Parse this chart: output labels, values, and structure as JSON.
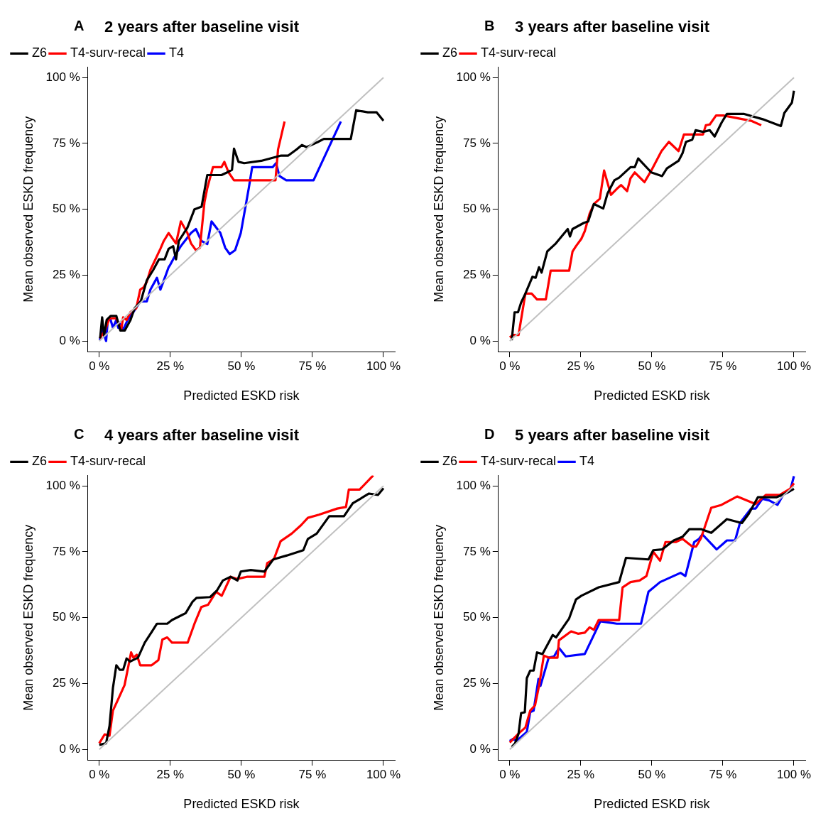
{
  "chart_data": [
    {
      "type": "line",
      "title": "2 years after baseline visit",
      "annotations": [
        "A"
      ],
      "xlabel": "Predicted ESKD risk",
      "ylabel": "Mean observed ESKD frequency",
      "xlim": [
        -4,
        104
      ],
      "ylim": [
        -4,
        104
      ],
      "xticks": [
        {
          "value": 0,
          "label": "0 %"
        },
        {
          "value": 25,
          "label": "25 %"
        },
        {
          "value": 50,
          "label": "50 %"
        },
        {
          "value": 75,
          "label": "75 %"
        },
        {
          "value": 100,
          "label": "100 %"
        }
      ],
      "yticks": [
        {
          "value": 0,
          "label": "0 %"
        },
        {
          "value": 25,
          "label": "25 %"
        },
        {
          "value": 50,
          "label": "50 %"
        },
        {
          "value": 75,
          "label": "75 %"
        },
        {
          "value": 100,
          "label": "100 %"
        }
      ],
      "grid": false,
      "legend": "top left",
      "marker": "none",
      "line_style": "solid",
      "series": [
        {
          "color": "#c0c0c0",
          "x": [
            0,
            100
          ],
          "values": [
            0,
            100
          ]
        },
        {
          "name": "Z6",
          "color": "#000000",
          "x": [
            0.3,
            1,
            1.7,
            2.6,
            4,
            6,
            7.4,
            9,
            11,
            12.4,
            14.6,
            16.7,
            19,
            21,
            23,
            24.4,
            26,
            27,
            28,
            31,
            33.5,
            36,
            38,
            43,
            45,
            46.7,
            47.4,
            49,
            51,
            57,
            64,
            66.5,
            69.4,
            71.3,
            73,
            77,
            79,
            81.3,
            88.5,
            90.4,
            94.5,
            97.6,
            100
          ],
          "values": [
            1,
            9,
            2,
            8,
            9.5,
            9.5,
            4,
            4,
            8,
            12.4,
            15,
            23,
            27,
            31,
            31,
            35,
            36,
            31,
            38,
            43,
            50,
            51,
            63,
            63,
            64,
            65,
            73,
            68,
            67.5,
            68.4,
            70.4,
            70.4,
            72.7,
            74.4,
            73.6,
            75.6,
            76.7,
            76.7,
            76.7,
            87.6,
            86.8,
            86.8,
            83.6
          ]
        },
        {
          "name": "T4-surv-recal",
          "color": "#ff0000",
          "x": [
            0.2,
            2,
            3.6,
            6,
            7.7,
            8.4,
            9.6,
            11,
            13,
            14.4,
            15.6,
            16.7,
            18,
            21.5,
            22.7,
            24.4,
            27,
            28.7,
            31,
            32.3,
            34,
            35.4,
            37,
            38,
            40,
            43,
            44,
            45.5,
            47.4,
            52.6,
            62,
            62.9,
            65.2
          ],
          "values": [
            1,
            4,
            8.6,
            8.6,
            4.3,
            9,
            8,
            11,
            12.4,
            19.5,
            20.4,
            22.4,
            27,
            35,
            38,
            41,
            37,
            45.4,
            41,
            37,
            34.5,
            35.4,
            52.6,
            58,
            66,
            66,
            68,
            64,
            61,
            61,
            61,
            72.7,
            83.3
          ]
        },
        {
          "name": "T4",
          "color": "#0000ff",
          "x": [
            0.2,
            1,
            1.7,
            2.4,
            3,
            4,
            4.8,
            6,
            6.7,
            7.2,
            8.4,
            10,
            12,
            14.4,
            16.7,
            18,
            20.3,
            21.5,
            23.4,
            24.4,
            25,
            27.5,
            28.7,
            32.3,
            34,
            35.9,
            38,
            39.5,
            42.6,
            44.3,
            45.9,
            47.8,
            49.8,
            52.6,
            53.8,
            61,
            62.2,
            63.4,
            65.8,
            75.4,
            85
          ],
          "values": [
            0.3,
            5,
            2.3,
            0,
            8,
            8,
            5,
            8,
            5,
            6.6,
            4.3,
            8,
            11,
            15,
            15,
            19.5,
            24,
            19.5,
            25,
            28,
            29,
            34,
            36,
            41,
            42.5,
            38,
            36.8,
            45.4,
            41,
            35.4,
            33,
            34.5,
            41,
            58,
            66,
            66,
            67.5,
            62.6,
            61,
            61,
            83.3
          ]
        }
      ]
    },
    {
      "type": "line",
      "title": "3 years after baseline visit",
      "annotations": [
        "B"
      ],
      "xlabel": "Predicted ESKD risk",
      "ylabel": "Mean observed ESKD frequency",
      "xlim": [
        -4,
        104
      ],
      "ylim": [
        -4,
        104
      ],
      "xticks": [
        {
          "value": 0,
          "label": "0 %"
        },
        {
          "value": 25,
          "label": "25 %"
        },
        {
          "value": 50,
          "label": "50 %"
        },
        {
          "value": 75,
          "label": "75 %"
        },
        {
          "value": 100,
          "label": "100 %"
        }
      ],
      "yticks": [
        {
          "value": 0,
          "label": "0 %"
        },
        {
          "value": 25,
          "label": "25 %"
        },
        {
          "value": 50,
          "label": "50 %"
        },
        {
          "value": 75,
          "label": "75 %"
        },
        {
          "value": 100,
          "label": "100 %"
        }
      ],
      "grid": false,
      "legend": "top left",
      "marker": "none",
      "line_style": "solid",
      "series": [
        {
          "color": "#c0c0c0",
          "x": [
            0,
            100
          ],
          "values": [
            0,
            100
          ]
        },
        {
          "name": "Z6",
          "color": "#000000",
          "x": [
            0.7,
            1.7,
            2.9,
            4,
            5.5,
            8,
            9.1,
            10.3,
            11.2,
            13.2,
            16,
            20.4,
            21.2,
            22.1,
            26,
            27.6,
            29.6,
            32.9,
            34.4,
            36.8,
            38.5,
            42.5,
            44,
            45.2,
            49.8,
            53.6,
            55.3,
            59.4,
            60.8,
            62,
            64.2,
            65.4,
            68,
            70.4,
            72.1,
            74.5,
            76.4,
            82.5,
            89,
            95.4,
            96.6,
            99.3,
            100
          ],
          "values": [
            0.3,
            10.9,
            10.9,
            14.6,
            18,
            24.4,
            24,
            28,
            26,
            34,
            36.8,
            42.5,
            39.7,
            42.5,
            44.8,
            45.4,
            52,
            50.3,
            56,
            61,
            62,
            66,
            66,
            69.3,
            64,
            62.6,
            65.5,
            68.4,
            71.3,
            75.6,
            76.4,
            80,
            79.4,
            80,
            77.6,
            82.8,
            86.2,
            86.2,
            84.2,
            81.6,
            86.5,
            90.5,
            95
          ]
        },
        {
          "name": "T4-surv-recal",
          "color": "#ff0000",
          "x": [
            0,
            1.2,
            3.1,
            5.5,
            7.7,
            9.6,
            12.7,
            14.4,
            20.9,
            22.1,
            23.3,
            25.2,
            26.4,
            28.1,
            29.6,
            31.7,
            33.2,
            35.6,
            37.7,
            39.2,
            41.3,
            42.5,
            44,
            47.4,
            49.8,
            53.4,
            56,
            59.4,
            61.3,
            68,
            69,
            70.4,
            72.6,
            75.2,
            84.9,
            88.5
          ],
          "values": [
            1.4,
            2.3,
            2.3,
            18,
            18,
            15.8,
            15.8,
            26.7,
            26.7,
            34,
            36,
            38.8,
            41.7,
            48.3,
            52,
            54,
            64.7,
            55.5,
            57.8,
            59.2,
            56.9,
            61.8,
            64,
            60.3,
            64.7,
            72.1,
            75.6,
            72.1,
            78.4,
            78.4,
            81.9,
            82.2,
            85.6,
            85.6,
            83.6,
            81.9
          ]
        }
      ]
    },
    {
      "type": "line",
      "title": "4 years after baseline visit",
      "annotations": [
        "C"
      ],
      "xlabel": "Predicted ESKD risk",
      "ylabel": "Mean observed ESKD frequency",
      "xlim": [
        -4,
        104
      ],
      "ylim": [
        -4,
        104
      ],
      "xticks": [
        {
          "value": 0,
          "label": "0 %"
        },
        {
          "value": 25,
          "label": "25 %"
        },
        {
          "value": 50,
          "label": "50 %"
        },
        {
          "value": 75,
          "label": "75 %"
        },
        {
          "value": 100,
          "label": "100 %"
        }
      ],
      "yticks": [
        {
          "value": 0,
          "label": "0 %"
        },
        {
          "value": 25,
          "label": "25 %"
        },
        {
          "value": 50,
          "label": "50 %"
        },
        {
          "value": 75,
          "label": "75 %"
        },
        {
          "value": 100,
          "label": "100 %"
        }
      ],
      "grid": false,
      "legend": "top left",
      "marker": "none",
      "line_style": "solid",
      "series": [
        {
          "color": "#c0c0c0",
          "x": [
            0,
            100
          ],
          "values": [
            0,
            100
          ]
        },
        {
          "name": "Z6",
          "color": "#000000",
          "x": [
            0,
            2.4,
            3.6,
            4.8,
            6,
            7.2,
            8.4,
            9.6,
            10.8,
            13.6,
            16,
            18.4,
            20.3,
            23.9,
            25.6,
            30.4,
            32.8,
            34.2,
            39,
            41.4,
            43.5,
            46.2,
            48.6,
            49.8,
            53.3,
            58.1,
            61.2,
            66,
            71.8,
            73.4,
            76.5,
            80.9,
            86.1,
            89.2,
            94.9,
            98.1,
            100
          ],
          "values": [
            1.7,
            2.3,
            8.9,
            23.3,
            31.9,
            30.2,
            30.2,
            34.5,
            33.3,
            34.8,
            40.5,
            44.5,
            47.7,
            47.7,
            49.1,
            51.7,
            56,
            57.5,
            57.8,
            60.3,
            64.1,
            65.5,
            64.1,
            67.5,
            68.1,
            67.5,
            72.1,
            73.6,
            75.6,
            79.9,
            81.9,
            88.5,
            88.5,
            93.4,
            97.1,
            96.6,
            99.1
          ]
        },
        {
          "name": "T4-surv-recal",
          "color": "#ff0000",
          "x": [
            0,
            1.9,
            3.6,
            4.8,
            6.5,
            8.9,
            11.2,
            12,
            13.2,
            14.4,
            18.4,
            20.8,
            22.2,
            23.9,
            25.6,
            31.1,
            33.5,
            35.9,
            38.3,
            41.1,
            43.1,
            46.2,
            48.6,
            51.9,
            58.1,
            59.1,
            61.4,
            63.8,
            67.7,
            71,
            73.4,
            77.3,
            83.7,
            86.8,
            87.8,
            91.6,
            96.4
          ],
          "values": [
            2.3,
            5.7,
            5.2,
            14.7,
            18.7,
            24.4,
            36.8,
            34.8,
            35.9,
            31.9,
            31.9,
            33.9,
            41.7,
            42.5,
            40.5,
            40.5,
            47.7,
            54,
            54.9,
            59.8,
            58.3,
            65.5,
            64.7,
            65.5,
            65.5,
            70.7,
            72.1,
            79,
            81.9,
            85.1,
            87.9,
            89.1,
            91.4,
            92,
            98.6,
            98.6,
            104
          ]
        }
      ]
    },
    {
      "type": "line",
      "title": "5 years after baseline visit",
      "annotations": [
        "D"
      ],
      "xlabel": "Predicted ESKD risk",
      "ylabel": "Mean observed ESKD frequency",
      "xlim": [
        -4,
        104
      ],
      "ylim": [
        -4,
        104
      ],
      "xticks": [
        {
          "value": 0,
          "label": "0 %"
        },
        {
          "value": 25,
          "label": "25 %"
        },
        {
          "value": 50,
          "label": "50 %"
        },
        {
          "value": 75,
          "label": "75 %"
        },
        {
          "value": 100,
          "label": "100 %"
        }
      ],
      "yticks": [
        {
          "value": 0,
          "label": "0 %"
        },
        {
          "value": 25,
          "label": "25 %"
        },
        {
          "value": 50,
          "label": "50 %"
        },
        {
          "value": 75,
          "label": "75 %"
        },
        {
          "value": 100,
          "label": "100 %"
        }
      ],
      "grid": false,
      "legend": "top left",
      "marker": "none",
      "line_style": "solid",
      "series": [
        {
          "color": "#c0c0c0",
          "x": [
            0,
            100
          ],
          "values": [
            0,
            100
          ]
        },
        {
          "name": "Z6",
          "color": "#000000",
          "x": [
            0.7,
            1.9,
            3.1,
            4,
            5.3,
            6,
            7.2,
            8.4,
            9.6,
            11.5,
            15.1,
            16.3,
            20.9,
            23.3,
            25.2,
            31.3,
            38.5,
            40.9,
            48.8,
            50.5,
            53.6,
            57.7,
            60.8,
            63.2,
            67.3,
            70.9,
            76.4,
            81.7,
            84.1,
            87.3,
            93.8,
            96.9,
            100
          ],
          "values": [
            0.9,
            2.3,
            6,
            13.8,
            14.1,
            27,
            29.9,
            29.9,
            36.8,
            36.2,
            43.4,
            42.5,
            49.7,
            56.9,
            58.3,
            61.5,
            63.5,
            72.7,
            72.1,
            75.6,
            75.9,
            79.3,
            80.7,
            83.6,
            83.6,
            82.2,
            87.4,
            85.9,
            89.4,
            95.7,
            95.7,
            97.1,
            98.9
          ]
        },
        {
          "name": "T4-surv-recal",
          "color": "#ff0000",
          "x": [
            0,
            3.1,
            5.5,
            7.2,
            8.9,
            10.3,
            12,
            13.7,
            16.8,
            17.3,
            21.6,
            24,
            26.4,
            28.1,
            29.6,
            31.3,
            38.5,
            39.7,
            42.5,
            45.7,
            48.1,
            50.5,
            52.9,
            54.8,
            58.4,
            60.8,
            64.2,
            65.6,
            67.3,
            70.9,
            74.5,
            80,
            86.5,
            90.1,
            95,
            98.6,
            100
          ],
          "values": [
            2.6,
            6,
            8.3,
            14.7,
            16.7,
            24.1,
            35.6,
            34.8,
            34.8,
            41.4,
            44.8,
            43.9,
            44.3,
            46.3,
            45.4,
            49.1,
            49.1,
            61.5,
            63.5,
            64.1,
            65.8,
            75,
            71.6,
            78.7,
            78.7,
            79.9,
            77,
            77,
            80.2,
            91.7,
            92.8,
            96,
            93.1,
            96.6,
            96.6,
            98.9,
            101
          ]
        },
        {
          "name": "T4",
          "color": "#0000ff",
          "x": [
            0,
            1.2,
            2.4,
            6,
            7.2,
            8.4,
            10.1,
            10.8,
            13.7,
            15.6,
            17.3,
            19.7,
            26.4,
            31.9,
            37.7,
            46.2,
            48.8,
            52.9,
            60.1,
            61.8,
            64.9,
            66.6,
            67.8,
            72.8,
            76.4,
            79.3,
            81,
            84.9,
            86.5,
            88.9,
            91.3,
            94.2,
            96.2,
            98.6,
            100
          ],
          "values": [
            3.2,
            4,
            3.2,
            6.6,
            14.1,
            14.7,
            26.7,
            24.1,
            34.8,
            35.3,
            38.5,
            35.3,
            36.2,
            48.6,
            47.7,
            47.7,
            59.8,
            63.5,
            67,
            65.8,
            78.7,
            79.9,
            81.6,
            75.9,
            79.3,
            79.3,
            85.9,
            91.4,
            91.4,
            95.1,
            94.5,
            92.8,
            96.6,
            98,
            103.7
          ]
        }
      ]
    }
  ]
}
